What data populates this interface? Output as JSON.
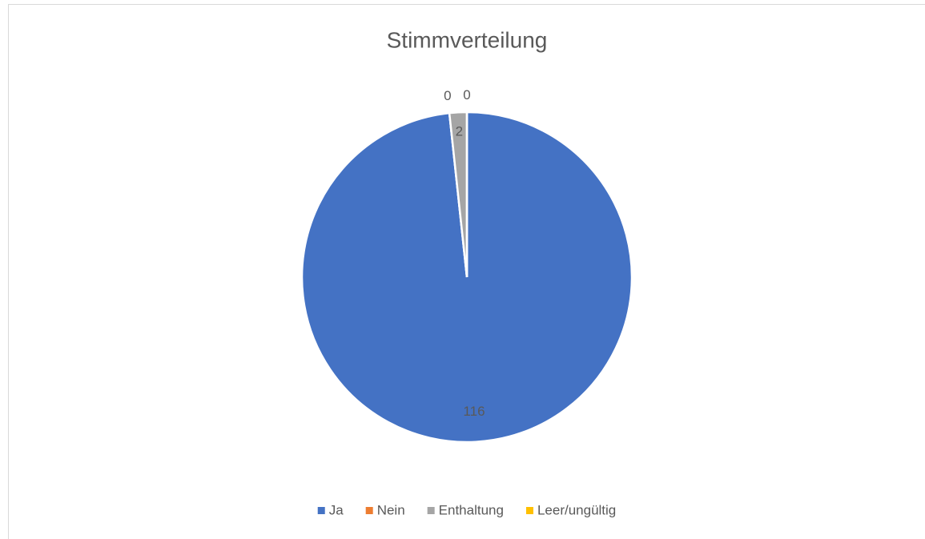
{
  "chart_data": {
    "type": "pie",
    "title": "Stimmverteilung",
    "categories": [
      "Ja",
      "Nein",
      "Enthaltung",
      "Leer/ungültig"
    ],
    "values": [
      116,
      0,
      2,
      0
    ],
    "colors": [
      "#4472c4",
      "#ed7d31",
      "#a5a5a5",
      "#ffc000"
    ],
    "legend": "bottom"
  }
}
